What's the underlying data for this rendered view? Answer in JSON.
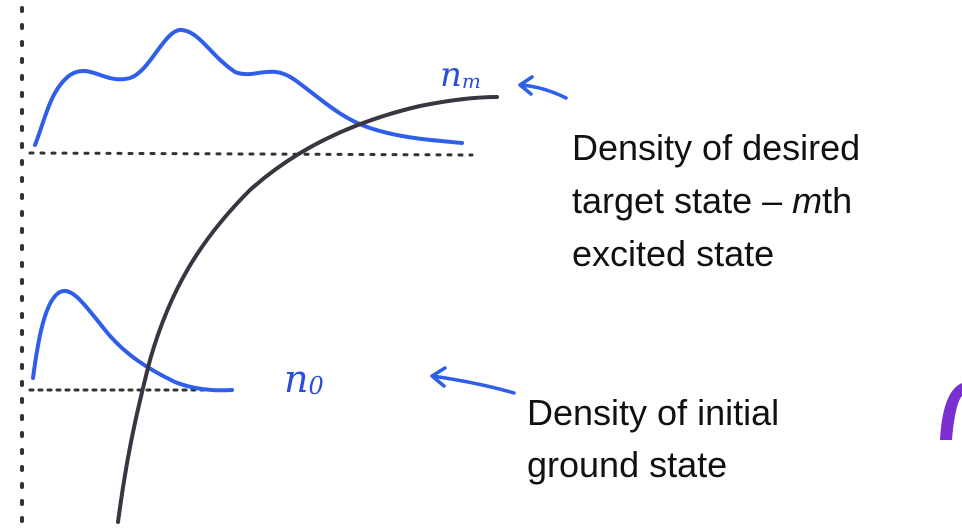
{
  "curve_labels": [
    {
      "symbol": "n",
      "subscript": "m"
    },
    {
      "symbol": "n",
      "subscript": "0"
    }
  ],
  "annotations": [
    {
      "lines": [
        [
          "Density of desired"
        ],
        [
          "target state – ",
          "m",
          "th"
        ],
        [
          "excited state"
        ]
      ]
    },
    {
      "lines": [
        [
          "Density of initial"
        ],
        [
          "ground state"
        ]
      ]
    }
  ]
}
